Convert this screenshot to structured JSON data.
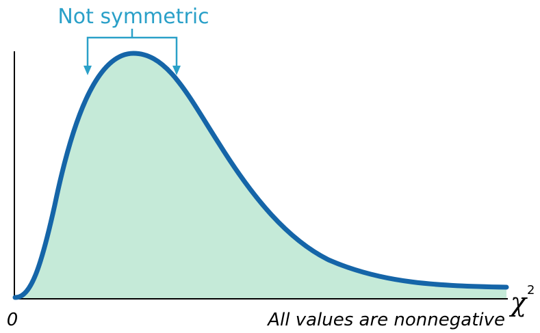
{
  "annotation": "Not symmetric",
  "origin_label": "0",
  "axis_label": {
    "symbol": "χ",
    "exponent": "2"
  },
  "caption": "All values are nonnegative"
}
